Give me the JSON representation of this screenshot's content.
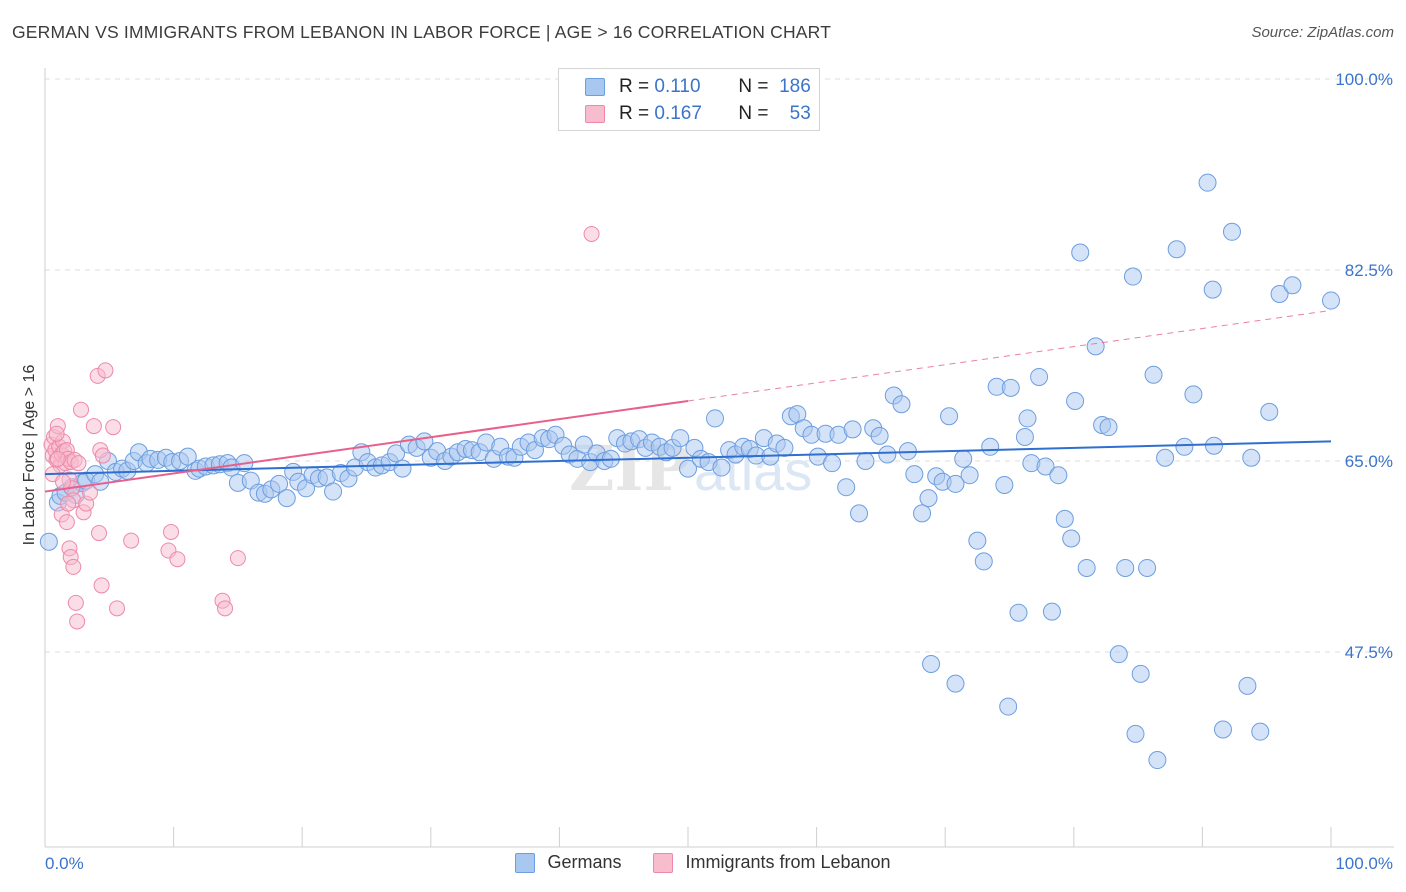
{
  "title": "GERMAN VS IMMIGRANTS FROM LEBANON IN LABOR FORCE | AGE > 16 CORRELATION CHART",
  "source": "Source: ZipAtlas.com",
  "legend": {
    "rows": [
      {
        "r_label": "R =",
        "r_value": "0.110",
        "n_label": "N =",
        "n_value": "186"
      },
      {
        "r_label": "R =",
        "r_value": "0.167",
        "n_label": "N =",
        "n_value": "53"
      }
    ]
  },
  "bottom_legend": {
    "germans": "Germans",
    "lebanon": "Immigrants from Lebanon"
  },
  "colors": {
    "germans_fill": "#a9c8f0",
    "germans_stroke": "#6d9ee0",
    "germans_line": "#2f6fd0",
    "lebanon_fill": "#f8bccf",
    "lebanon_stroke": "#ee8aa8",
    "lebanon_line": "#e8608a",
    "tick_text": "#3b74c9",
    "grid": "#dcdcdc"
  },
  "chart_data": {
    "type": "scatter",
    "xlabel": "",
    "ylabel": "In Labor Force | Age > 16",
    "xlim": [
      0,
      100
    ],
    "ylim": [
      32,
      102
    ],
    "x_tick_labels": [
      "0.0%",
      "100.0%"
    ],
    "y_ticks": [
      47.5,
      65.0,
      82.5,
      100.0
    ],
    "y_tick_labels": [
      "47.5%",
      "65.0%",
      "82.5%",
      "100.0%"
    ],
    "grid": "horizontal dashed",
    "watermark": "ZIPatlas",
    "series": [
      {
        "name": "Germans",
        "R": 0.11,
        "N": 186,
        "trend": {
          "x0": 0,
          "y0": 63.8,
          "x1": 100,
          "y1": 66.8
        },
        "points": [
          [
            0.3,
            57.6
          ],
          [
            1.0,
            61.2
          ],
          [
            1.2,
            61.8
          ],
          [
            1.6,
            62.1
          ],
          [
            2.1,
            62.6
          ],
          [
            2.4,
            61.9
          ],
          [
            2.9,
            63.0
          ],
          [
            3.2,
            63.2
          ],
          [
            3.9,
            63.8
          ],
          [
            4.3,
            63.1
          ],
          [
            4.9,
            65.0
          ],
          [
            5.5,
            64.0
          ],
          [
            6.0,
            64.3
          ],
          [
            6.4,
            64.1
          ],
          [
            6.9,
            65.0
          ],
          [
            7.3,
            65.8
          ],
          [
            7.9,
            64.8
          ],
          [
            8.2,
            65.2
          ],
          [
            8.8,
            65.1
          ],
          [
            9.4,
            65.3
          ],
          [
            9.9,
            64.9
          ],
          [
            10.5,
            65.0
          ],
          [
            11.1,
            65.4
          ],
          [
            11.7,
            64.1
          ],
          [
            12.0,
            64.3
          ],
          [
            12.5,
            64.5
          ],
          [
            13.1,
            64.6
          ],
          [
            13.6,
            64.7
          ],
          [
            14.2,
            64.8
          ],
          [
            14.5,
            64.4
          ],
          [
            15.0,
            63.0
          ],
          [
            15.5,
            64.8
          ],
          [
            16.0,
            63.2
          ],
          [
            16.6,
            62.1
          ],
          [
            17.1,
            62.0
          ],
          [
            17.6,
            62.4
          ],
          [
            18.2,
            62.9
          ],
          [
            18.8,
            61.6
          ],
          [
            19.3,
            64.0
          ],
          [
            19.7,
            63.1
          ],
          [
            20.3,
            62.5
          ],
          [
            20.8,
            63.7
          ],
          [
            21.3,
            63.4
          ],
          [
            21.9,
            63.5
          ],
          [
            22.4,
            62.2
          ],
          [
            23.0,
            63.9
          ],
          [
            23.6,
            63.4
          ],
          [
            24.1,
            64.4
          ],
          [
            24.6,
            65.8
          ],
          [
            25.1,
            64.9
          ],
          [
            25.7,
            64.4
          ],
          [
            26.2,
            64.6
          ],
          [
            26.8,
            64.9
          ],
          [
            27.3,
            65.7
          ],
          [
            27.8,
            64.3
          ],
          [
            28.3,
            66.5
          ],
          [
            28.9,
            66.2
          ],
          [
            29.5,
            66.8
          ],
          [
            30.0,
            65.3
          ],
          [
            30.5,
            65.9
          ],
          [
            31.1,
            65.0
          ],
          [
            31.6,
            65.4
          ],
          [
            32.1,
            65.8
          ],
          [
            32.7,
            66.1
          ],
          [
            33.2,
            66.0
          ],
          [
            33.8,
            65.8
          ],
          [
            34.3,
            66.7
          ],
          [
            34.9,
            65.2
          ],
          [
            35.4,
            66.3
          ],
          [
            36.0,
            65.4
          ],
          [
            36.5,
            65.3
          ],
          [
            37.0,
            66.3
          ],
          [
            37.6,
            66.7
          ],
          [
            38.1,
            66.0
          ],
          [
            38.7,
            67.1
          ],
          [
            39.2,
            67.0
          ],
          [
            39.7,
            67.4
          ],
          [
            40.3,
            66.4
          ],
          [
            40.8,
            65.6
          ],
          [
            41.4,
            65.2
          ],
          [
            41.9,
            66.5
          ],
          [
            42.4,
            64.9
          ],
          [
            42.9,
            65.7
          ],
          [
            43.5,
            65.0
          ],
          [
            44.0,
            65.2
          ],
          [
            44.5,
            67.1
          ],
          [
            45.1,
            66.6
          ],
          [
            45.6,
            66.8
          ],
          [
            46.2,
            67.0
          ],
          [
            46.7,
            66.2
          ],
          [
            47.2,
            66.7
          ],
          [
            47.8,
            66.3
          ],
          [
            48.3,
            65.8
          ],
          [
            48.8,
            66.2
          ],
          [
            49.4,
            67.1
          ],
          [
            50.0,
            64.3
          ],
          [
            50.5,
            66.2
          ],
          [
            51.0,
            65.2
          ],
          [
            51.6,
            64.9
          ],
          [
            52.1,
            68.9
          ],
          [
            52.6,
            64.4
          ],
          [
            53.2,
            66.0
          ],
          [
            53.7,
            65.6
          ],
          [
            54.3,
            66.3
          ],
          [
            54.8,
            66.1
          ],
          [
            55.3,
            65.5
          ],
          [
            55.9,
            67.1
          ],
          [
            56.4,
            65.4
          ],
          [
            56.9,
            66.6
          ],
          [
            57.5,
            66.2
          ],
          [
            58.0,
            69.1
          ],
          [
            58.5,
            69.3
          ],
          [
            59.0,
            68.0
          ],
          [
            59.6,
            67.4
          ],
          [
            60.1,
            65.4
          ],
          [
            60.7,
            67.5
          ],
          [
            61.2,
            64.8
          ],
          [
            61.7,
            67.4
          ],
          [
            62.3,
            62.6
          ],
          [
            62.8,
            67.9
          ],
          [
            63.3,
            60.2
          ],
          [
            63.8,
            65.0
          ],
          [
            64.4,
            68.0
          ],
          [
            64.9,
            67.3
          ],
          [
            65.5,
            65.6
          ],
          [
            66.0,
            71.0
          ],
          [
            66.6,
            70.2
          ],
          [
            67.1,
            65.9
          ],
          [
            67.6,
            63.8
          ],
          [
            68.2,
            60.2
          ],
          [
            68.7,
            61.6
          ],
          [
            69.3,
            63.6
          ],
          [
            69.8,
            63.1
          ],
          [
            70.3,
            69.1
          ],
          [
            70.8,
            62.9
          ],
          [
            71.4,
            65.2
          ],
          [
            71.9,
            63.7
          ],
          [
            72.5,
            57.7
          ],
          [
            73.0,
            55.8
          ],
          [
            73.5,
            66.3
          ],
          [
            74.0,
            71.8
          ],
          [
            74.6,
            62.8
          ],
          [
            75.1,
            71.7
          ],
          [
            75.7,
            51.1
          ],
          [
            76.2,
            67.2
          ],
          [
            76.7,
            64.8
          ],
          [
            77.3,
            72.7
          ],
          [
            77.8,
            64.5
          ],
          [
            78.3,
            51.2
          ],
          [
            78.8,
            63.7
          ],
          [
            79.3,
            59.7
          ],
          [
            79.8,
            57.9
          ],
          [
            80.5,
            84.1
          ],
          [
            81.0,
            55.2
          ],
          [
            81.7,
            75.5
          ],
          [
            82.2,
            68.3
          ],
          [
            82.7,
            68.1
          ],
          [
            83.5,
            47.3
          ],
          [
            84.0,
            55.2
          ],
          [
            84.6,
            81.9
          ],
          [
            85.2,
            45.5
          ],
          [
            85.7,
            55.2
          ],
          [
            86.2,
            72.9
          ],
          [
            87.1,
            65.3
          ],
          [
            88.0,
            84.4
          ],
          [
            88.6,
            66.3
          ],
          [
            89.3,
            71.1
          ],
          [
            90.4,
            90.5
          ],
          [
            90.8,
            80.7
          ],
          [
            91.6,
            40.4
          ],
          [
            92.3,
            86.0
          ],
          [
            93.5,
            44.4
          ],
          [
            94.5,
            40.2
          ],
          [
            96.0,
            80.3
          ],
          [
            97.0,
            81.1
          ],
          [
            100.0,
            79.7
          ],
          [
            84.8,
            40.0
          ],
          [
            86.5,
            37.6
          ],
          [
            74.9,
            42.5
          ],
          [
            70.8,
            44.6
          ],
          [
            68.9,
            46.4
          ],
          [
            90.9,
            66.4
          ],
          [
            93.8,
            65.3
          ],
          [
            95.2,
            69.5
          ],
          [
            76.4,
            68.9
          ],
          [
            80.1,
            70.5
          ]
        ]
      },
      {
        "name": "Immigrants from Lebanon",
        "R": 0.167,
        "N": 53,
        "trend": {
          "x0": 0,
          "y0": 62.2,
          "x1": 50,
          "y1": 70.5,
          "x_ext": 100,
          "y_ext": 78.8
        },
        "points": [
          [
            0.5,
            66.5
          ],
          [
            0.6,
            65.5
          ],
          [
            0.7,
            67.2
          ],
          [
            0.8,
            66.0
          ],
          [
            0.9,
            65.1
          ],
          [
            1.0,
            68.2
          ],
          [
            1.1,
            66.3
          ],
          [
            1.2,
            64.6
          ],
          [
            1.3,
            65.6
          ],
          [
            1.4,
            66.8
          ],
          [
            1.5,
            65.9
          ],
          [
            1.6,
            64.8
          ],
          [
            1.7,
            66.0
          ],
          [
            1.8,
            65.2
          ],
          [
            1.9,
            63.3
          ],
          [
            2.0,
            64.9
          ],
          [
            2.1,
            62.5
          ],
          [
            2.2,
            61.4
          ],
          [
            0.6,
            63.8
          ],
          [
            1.3,
            60.1
          ],
          [
            1.7,
            59.4
          ],
          [
            1.9,
            57.0
          ],
          [
            2.0,
            56.2
          ],
          [
            2.2,
            55.3
          ],
          [
            2.4,
            52.0
          ],
          [
            2.5,
            50.3
          ],
          [
            0.9,
            67.5
          ],
          [
            1.0,
            65.2
          ],
          [
            1.4,
            63.1
          ],
          [
            1.8,
            61.1
          ],
          [
            2.3,
            65.1
          ],
          [
            2.6,
            64.8
          ],
          [
            3.0,
            60.3
          ],
          [
            3.2,
            61.1
          ],
          [
            3.5,
            62.1
          ],
          [
            3.8,
            68.2
          ],
          [
            4.1,
            72.8
          ],
          [
            4.2,
            58.4
          ],
          [
            4.3,
            66.0
          ],
          [
            4.4,
            53.6
          ],
          [
            4.5,
            65.5
          ],
          [
            4.7,
            73.3
          ],
          [
            5.3,
            68.1
          ],
          [
            5.6,
            51.5
          ],
          [
            6.7,
            57.7
          ],
          [
            9.6,
            56.8
          ],
          [
            9.8,
            58.5
          ],
          [
            10.3,
            56.0
          ],
          [
            13.8,
            52.2
          ],
          [
            14.0,
            51.5
          ],
          [
            15.0,
            56.1
          ],
          [
            42.5,
            85.8
          ],
          [
            2.8,
            69.7
          ]
        ]
      }
    ]
  }
}
